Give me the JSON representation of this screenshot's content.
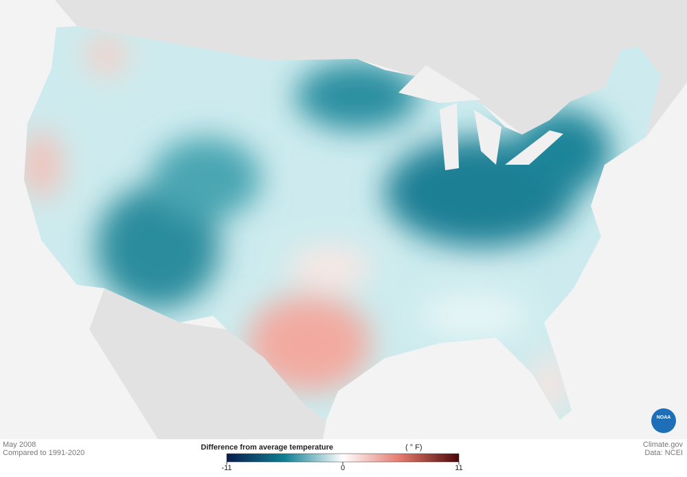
{
  "caption": {
    "period": "May 2008",
    "baseline": "Compared to 1991-2020"
  },
  "legend": {
    "title": "Difference from average temperature",
    "unit": "( ° F)",
    "ticks": [
      -11,
      0,
      11
    ],
    "colors": [
      "#0b1d4d",
      "#0f7f92",
      "#ffffff",
      "#e3786c",
      "#4b0808"
    ]
  },
  "credits": {
    "site": "Climate.gov",
    "source": "Data: NCEI",
    "logo": "NOAA"
  }
}
